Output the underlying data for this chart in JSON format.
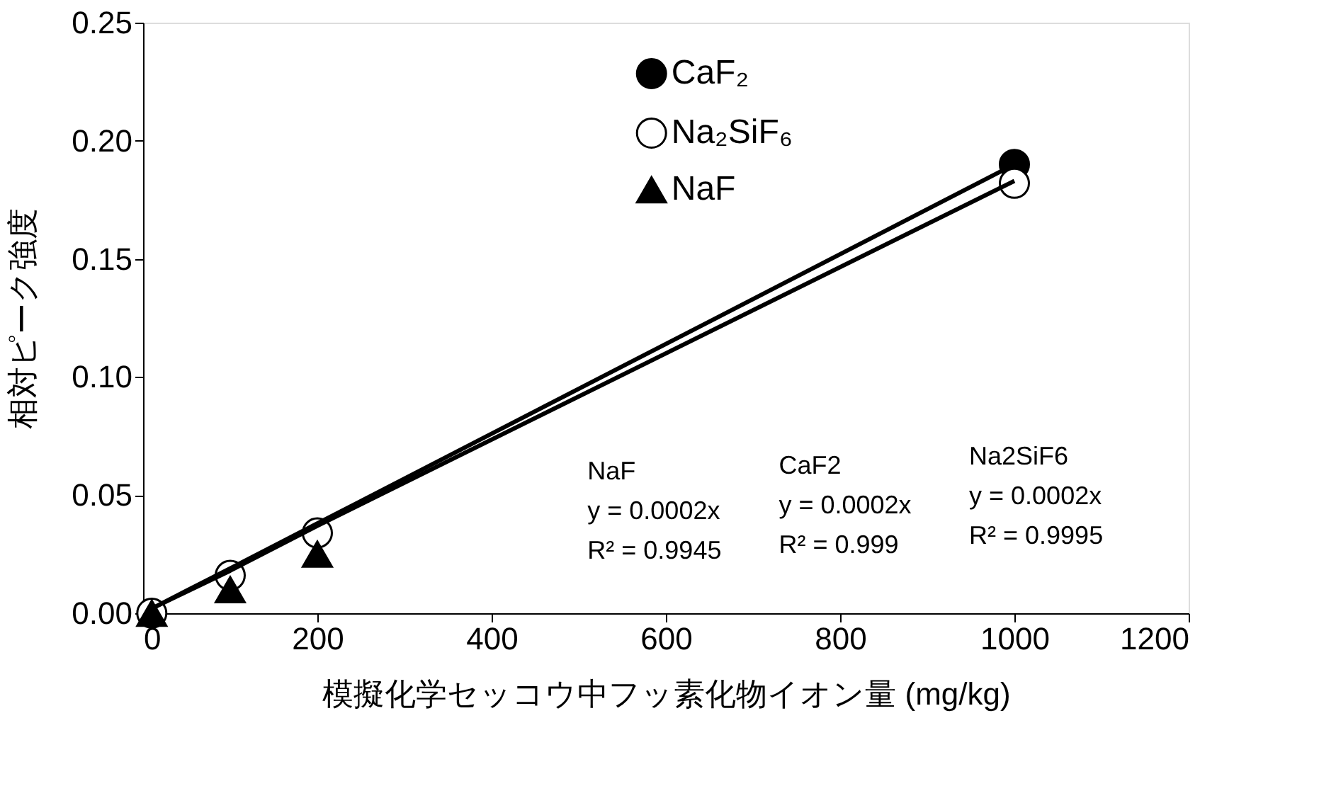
{
  "chart_data": {
    "type": "scatter",
    "xlabel": "模擬化学セッコウ中フッ素化物イオン量 (mg/kg)",
    "ylabel": "相対ピーク強度",
    "x": [
      10,
      100,
      200,
      1000
    ],
    "series": [
      {
        "name": "CaF₂",
        "color": "#000000",
        "marker": "circle",
        "values": [
          null,
          null,
          null,
          0.19
        ]
      },
      {
        "name": "Na₂SiF₆",
        "color": "#ffffff",
        "marker": "circle",
        "values": [
          0,
          0.016,
          0.034,
          0.182
        ]
      },
      {
        "name": "NaF",
        "color": "#000000",
        "marker": "triangle",
        "values": [
          0,
          0.01,
          0.025,
          null
        ]
      },
      {
        "type": "line",
        "color": "#000000",
        "values": [
          0.002,
          0.019,
          0.038,
          0.19
        ]
      },
      {
        "type": "line",
        "color": "#000000",
        "values": [
          0.002,
          0.018,
          0.037,
          0.183
        ]
      }
    ],
    "xlim": [
      0,
      1200
    ],
    "xticks": [
      0,
      200,
      400,
      600,
      800,
      1000,
      1200
    ],
    "ylim": [
      0,
      0.25
    ],
    "yticks": [
      {
        "value": 0,
        "label": "0.00"
      },
      {
        "value": 0.05,
        "label": "0.05"
      },
      {
        "value": 0.1,
        "label": "0.10"
      },
      {
        "value": 0.15,
        "label": "0.15"
      },
      {
        "value": 0.2,
        "label": "0.20"
      },
      {
        "value": 0.25,
        "label": "0.25"
      }
    ],
    "annotations": [
      "NaF\ny = 0.0002x\nR² = 0.9945",
      "CaF2\ny = 0.0002x\nR² = 0.999",
      "Na2SiF6\ny = 0.0002x\nR² = 0.9995"
    ],
    "legend": "top",
    "grid": false
  }
}
